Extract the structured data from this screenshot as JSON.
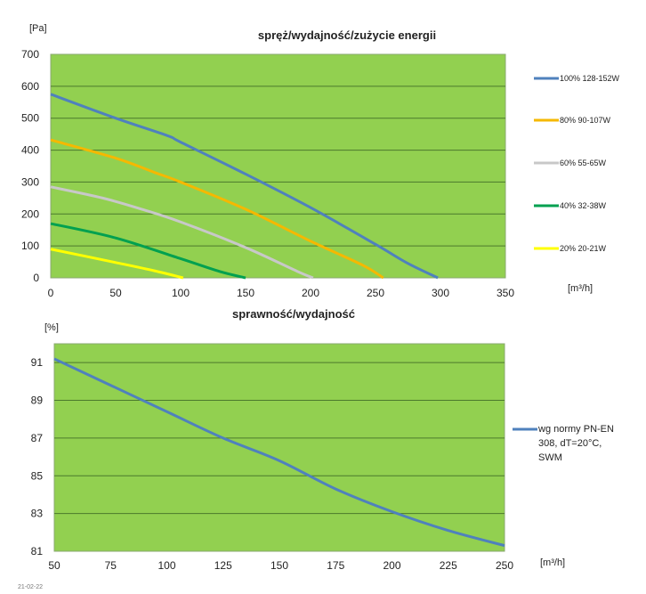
{
  "chart_data": [
    {
      "type": "line",
      "title": "spręż/wydajność/zużycie energii",
      "xlabel": "[m³/h]",
      "ylabel": "[Pa]",
      "xlim": [
        0,
        350
      ],
      "ylim": [
        0,
        700
      ],
      "xticks": [
        0,
        50,
        100,
        150,
        200,
        250,
        300,
        350
      ],
      "yticks": [
        0,
        100,
        200,
        300,
        400,
        500,
        600,
        700
      ],
      "grid": "horizontal",
      "legend": "right",
      "background": "#92D050",
      "series": [
        {
          "name": "100% 128-152W",
          "color": "#4F81BD",
          "points": [
            [
              0,
              575
            ],
            [
              50,
              500
            ],
            [
              90,
              445
            ],
            [
              100,
              425
            ],
            [
              150,
              325
            ],
            [
              200,
              220
            ],
            [
              250,
              105
            ],
            [
              275,
              45
            ],
            [
              298,
              0
            ]
          ]
        },
        {
          "name": "80% 90-107W",
          "color": "#F5B800",
          "points": [
            [
              0,
              432
            ],
            [
              50,
              375
            ],
            [
              80,
              330
            ],
            [
              100,
              300
            ],
            [
              150,
              215
            ],
            [
              200,
              115
            ],
            [
              240,
              40
            ],
            [
              256,
              0
            ]
          ]
        },
        {
          "name": "60% 55-65W",
          "color": "#C8C8C8",
          "points": [
            [
              0,
              285
            ],
            [
              40,
              250
            ],
            [
              70,
              215
            ],
            [
              100,
              175
            ],
            [
              150,
              95
            ],
            [
              190,
              20
            ],
            [
              202,
              0
            ]
          ]
        },
        {
          "name": "40% 32-38W",
          "color": "#00A050",
          "points": [
            [
              0,
              170
            ],
            [
              50,
              125
            ],
            [
              100,
              60
            ],
            [
              130,
              20
            ],
            [
              150,
              0
            ]
          ]
        },
        {
          "name": "20% 20-21W",
          "color": "#FFFF00",
          "points": [
            [
              0,
              90
            ],
            [
              50,
              48
            ],
            [
              80,
              22
            ],
            [
              102,
              0
            ]
          ]
        }
      ]
    },
    {
      "type": "line",
      "title": "sprawność/wydajność",
      "xlabel": "[m³/h]",
      "ylabel": "[%]",
      "xlim": [
        50,
        250
      ],
      "ylim": [
        81,
        92
      ],
      "xticks": [
        50,
        75,
        100,
        125,
        150,
        175,
        200,
        225,
        250
      ],
      "yticks": [
        81,
        83,
        85,
        87,
        89,
        91
      ],
      "grid": "horizontal",
      "legend": "right",
      "background": "#92D050",
      "series": [
        {
          "name": "wg normy PN-EN 308, dT=20°C, SWM",
          "legend_lines": [
            "wg normy PN-EN",
            "308, dT=20°C,",
            "SWM"
          ],
          "color": "#4F81BD",
          "points": [
            [
              50,
              91.2
            ],
            [
              75,
              89.8
            ],
            [
              100,
              88.4
            ],
            [
              125,
              87
            ],
            [
              150,
              85.8
            ],
            [
              175,
              84.3
            ],
            [
              200,
              83.1
            ],
            [
              225,
              82.1
            ],
            [
              250,
              81.3
            ]
          ]
        }
      ]
    }
  ],
  "footer_date": "21-02-22"
}
